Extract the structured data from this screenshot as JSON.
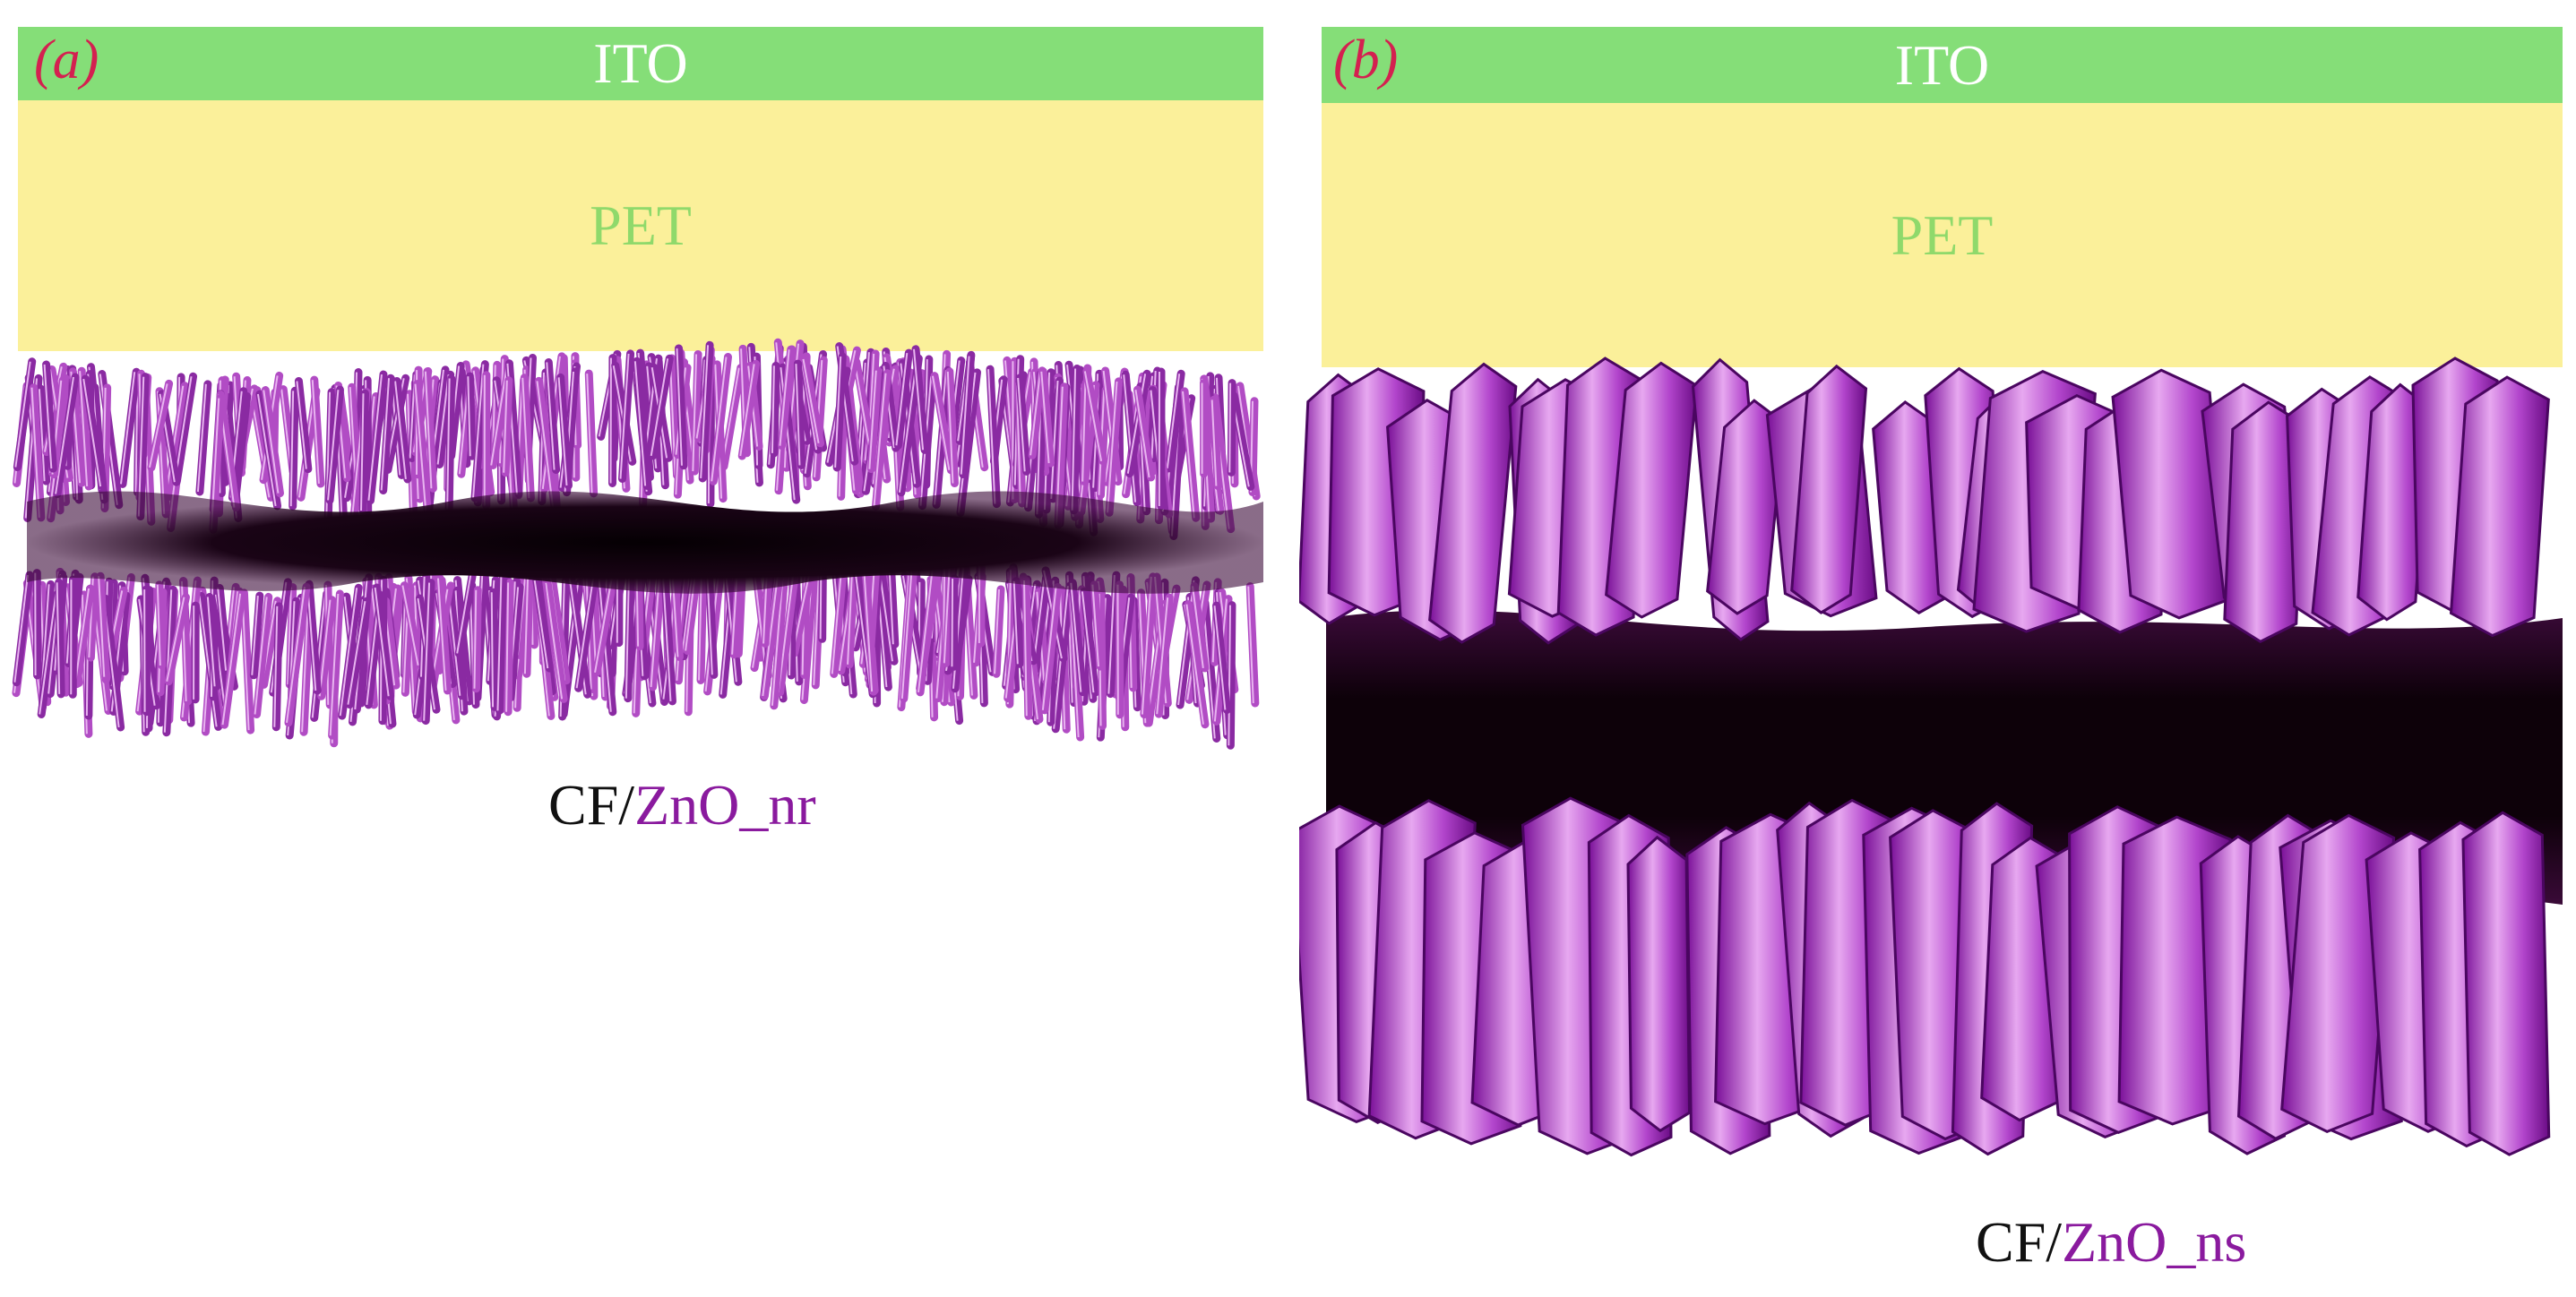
{
  "panels": [
    {
      "letter_open": "(",
      "letter": "a",
      "letter_close": ")",
      "ito_label": "ITO",
      "pet_label": "PET",
      "caption_prefix": "CF/",
      "caption_material": "ZnO_nr",
      "morphology": "nanorods"
    },
    {
      "letter_open": "(",
      "letter": "b",
      "letter_close": ")",
      "ito_label": "ITO",
      "pet_label": "PET",
      "caption_prefix": "CF/",
      "caption_material": "ZnO_ns",
      "morphology": "nanosheets"
    }
  ],
  "colors": {
    "ito": "#85de78",
    "pet": "#fbf09a",
    "pet_text": "#8fd96b",
    "panel_letter": "#d42050",
    "zno": "#8a1a9e",
    "carbon_fiber": "#1a0416"
  }
}
